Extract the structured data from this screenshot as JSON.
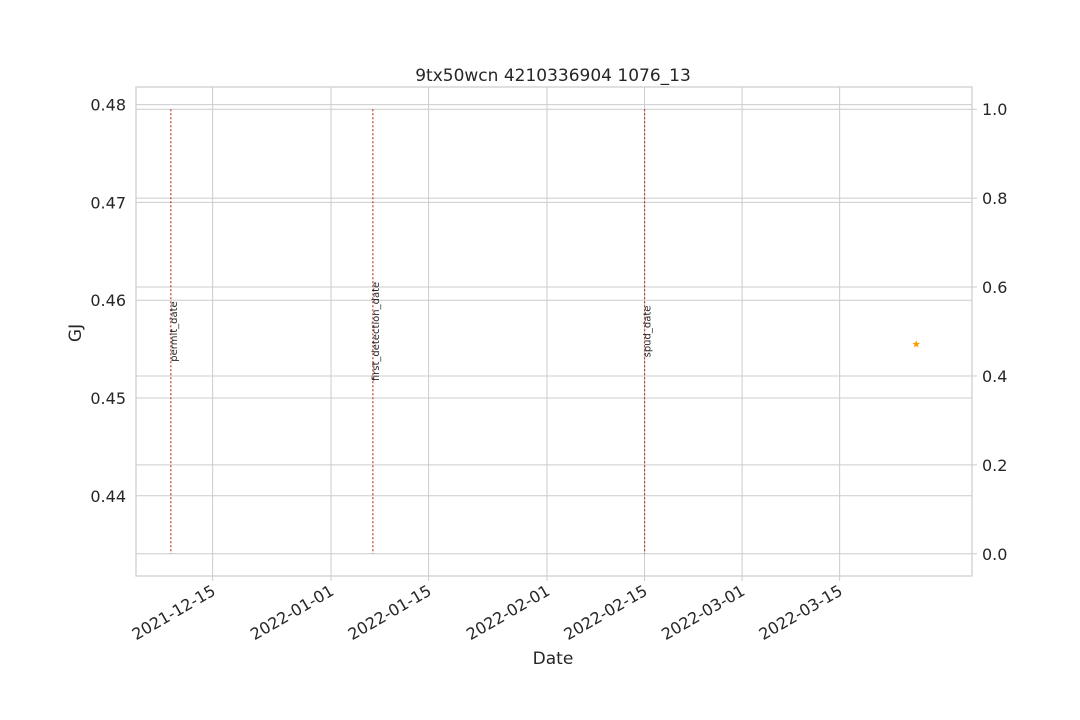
{
  "chart_data": {
    "type": "scatter",
    "title": "9tx50wcn 4210336904 1076_13",
    "xlabel": "Date",
    "ylabel_left": "GJ",
    "ylabel_right": "",
    "x_ticks": [
      "2021-12-15",
      "2022-01-01",
      "2022-01-15",
      "2022-02-01",
      "2022-02-15",
      "2022-03-01",
      "2022-03-15"
    ],
    "xlim": [
      "2021-12-04",
      "2022-04-03"
    ],
    "y_left_ticks": [
      0.44,
      0.45,
      0.46,
      0.47,
      0.48
    ],
    "y_left_lim": [
      0.4318,
      0.4818
    ],
    "y_right_ticks": [
      0.0,
      0.2,
      0.4,
      0.6,
      0.8,
      1.0
    ],
    "y_right_lim": [
      -0.05,
      1.05
    ],
    "grid": true,
    "event_lines": [
      {
        "label": "permit_date",
        "date": "2021-12-09"
      },
      {
        "label": "first_detection_date",
        "date": "2022-01-07"
      },
      {
        "label": "spud_date",
        "date": "2022-02-15"
      }
    ],
    "points": [
      {
        "date": "2022-03-26",
        "value": 0.4555,
        "marker": "star"
      }
    ],
    "colors": {
      "ylabel": "#1f77b4",
      "event_line": "#c0392b",
      "point": "#ff9900",
      "grid": "#cccccc",
      "axes": "#cccccc",
      "text": "#262626"
    }
  }
}
